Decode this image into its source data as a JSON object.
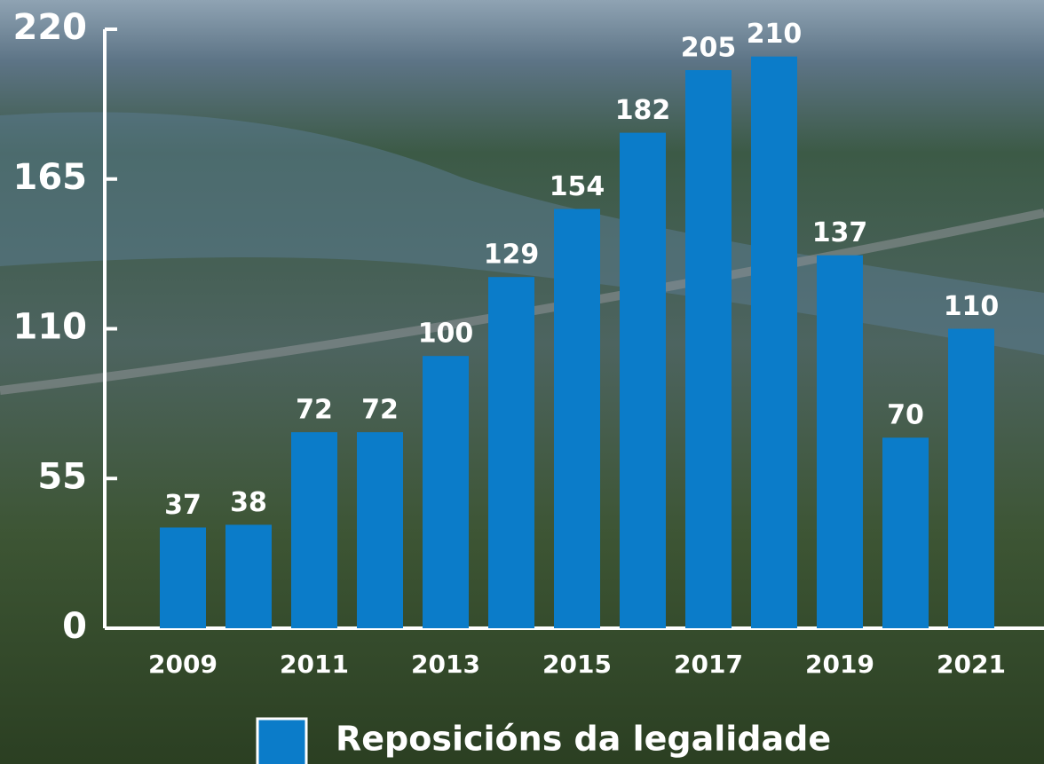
{
  "chart_data": {
    "type": "bar",
    "categories": [
      "2009",
      null,
      "2011",
      null,
      "2013",
      null,
      "2015",
      null,
      "2017",
      null,
      "2019",
      null,
      "2021"
    ],
    "series": [
      {
        "name": "Reposicións da legalidade",
        "color": "#0b7cc9",
        "values": [
          37,
          38,
          72,
          72,
          100,
          129,
          154,
          182,
          205,
          210,
          137,
          70,
          110
        ]
      }
    ],
    "ylim": [
      0,
      220
    ],
    "yticks": [
      0,
      55,
      110,
      165,
      220
    ],
    "grid": false
  }
}
